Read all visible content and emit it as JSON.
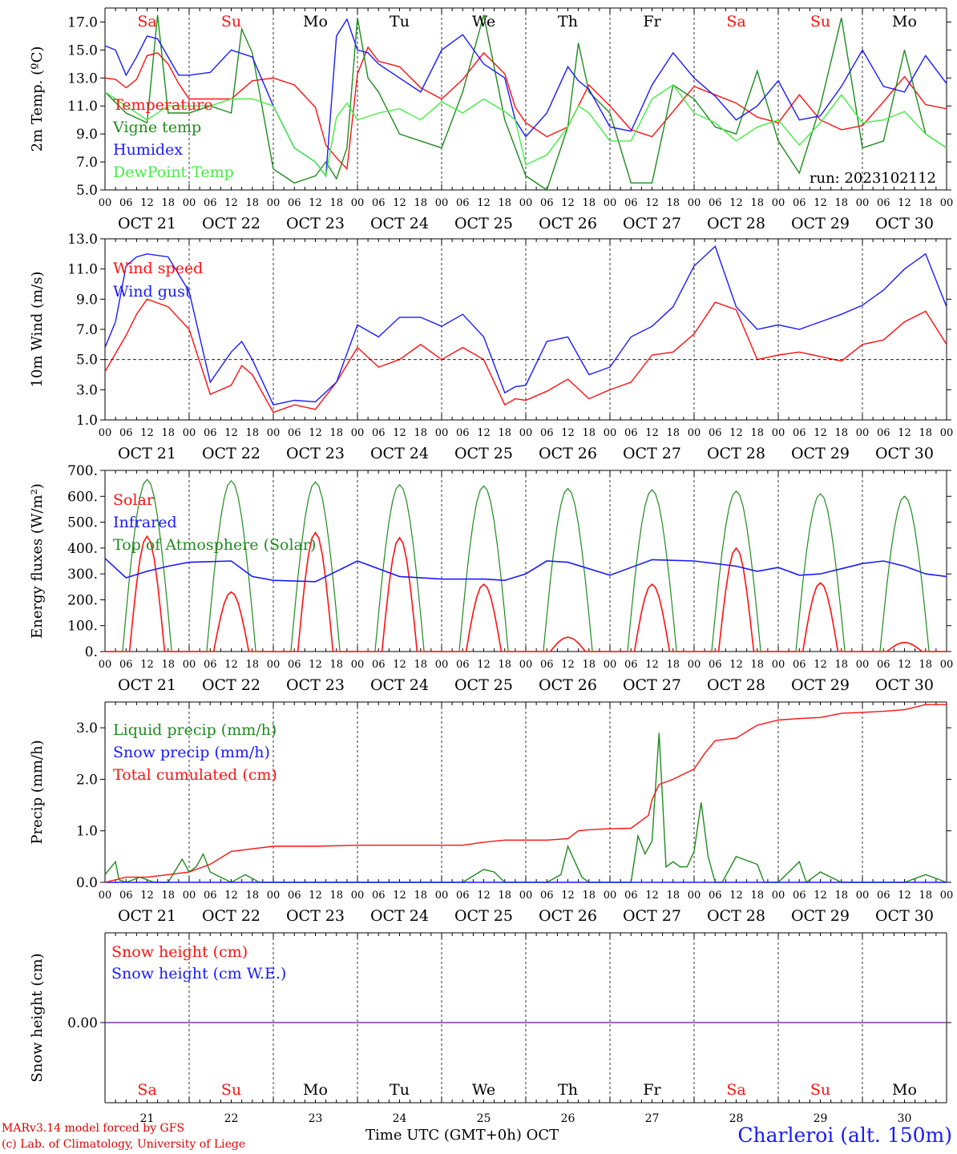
{
  "colors": {
    "red": "#ff1010",
    "green": "#1e8c1e",
    "blue": "#1a1aff",
    "lightgreen": "#44ee44",
    "purple": "#7a3aa0",
    "axis": "#000000"
  },
  "days": {
    "dates": [
      "21",
      "22",
      "23",
      "24",
      "25",
      "26",
      "27",
      "28",
      "29",
      "30"
    ],
    "date_labels": [
      "OCT 21",
      "OCT 22",
      "OCT 23",
      "OCT 24",
      "OCT 25",
      "OCT 26",
      "OCT 27",
      "OCT 28",
      "OCT 29",
      "OCT 30"
    ],
    "weekdays": [
      "Sa",
      "Su",
      "Mo",
      "Tu",
      "We",
      "Th",
      "Fr",
      "Sa",
      "Su",
      "Mo"
    ],
    "weekend": [
      true,
      true,
      false,
      false,
      false,
      false,
      false,
      true,
      true,
      false
    ],
    "hour_ticks": [
      "00",
      "06",
      "12",
      "18"
    ],
    "final_hour_label": "00"
  },
  "footer": {
    "model_line": "MARv3.14 model forced by GFS",
    "lab_line": "(c) Lab. of Climatology, University of Liege",
    "time_axis_title": "Time UTC (GMT+0h)",
    "month_label": "OCT",
    "station": "Charleroi (alt. 150m)"
  },
  "chart_data": [
    {
      "id": "temperature",
      "type": "line",
      "ylabel": "2m Temp. (ºC)",
      "ylim": [
        5.0,
        18.0
      ],
      "yticks": [
        5.0,
        7.0,
        9.0,
        11.0,
        13.0,
        15.0,
        17.0
      ],
      "ytick_labels": [
        "5.0",
        "7.0",
        "9.0",
        "11.0",
        "13.0",
        "15.0",
        "17.0"
      ],
      "annotation": "run: 2023102112",
      "x_unit": "hours since Oct 21 00 UTC",
      "series": [
        {
          "name": "Temperature",
          "color": "red",
          "x": [
            0,
            3,
            6,
            9,
            12,
            15,
            18,
            21,
            24,
            30,
            36,
            42,
            48,
            54,
            60,
            63,
            66,
            69,
            72,
            75,
            78,
            84,
            90,
            96,
            102,
            108,
            114,
            117,
            120,
            126,
            132,
            135,
            138,
            144,
            150,
            156,
            162,
            168,
            174,
            180,
            186,
            192,
            198,
            204,
            210,
            216,
            222,
            228,
            234,
            240
          ],
          "y": [
            13.0,
            12.9,
            12.3,
            12.9,
            14.6,
            14.8,
            14.0,
            12.6,
            11.5,
            11.5,
            11.5,
            12.8,
            13.0,
            12.5,
            10.9,
            8.2,
            7.3,
            6.5,
            13.3,
            15.2,
            14.2,
            13.8,
            12.3,
            11.5,
            12.9,
            14.8,
            13.3,
            10.9,
            9.8,
            8.8,
            9.5,
            11.0,
            12.5,
            11.0,
            9.3,
            8.8,
            10.6,
            12.4,
            11.8,
            11.2,
            10.2,
            9.8,
            11.8,
            10.0,
            9.3,
            9.6,
            11.3,
            13.1,
            11.1,
            10.8
          ]
        },
        {
          "name": "Vigne temp",
          "color": "green",
          "x": [
            0,
            6,
            12,
            15,
            18,
            24,
            30,
            36,
            39,
            42,
            48,
            54,
            60,
            63,
            66,
            69,
            72,
            75,
            78,
            84,
            90,
            96,
            102,
            108,
            114,
            120,
            126,
            132,
            135,
            138,
            144,
            150,
            156,
            162,
            168,
            174,
            180,
            186,
            192,
            198,
            204,
            210,
            216,
            222,
            228,
            234,
            240
          ],
          "y": [
            12.0,
            10.5,
            9.8,
            17.5,
            10.5,
            10.5,
            11.0,
            10.5,
            16.5,
            14.8,
            6.5,
            5.5,
            6.0,
            7.0,
            5.8,
            8.0,
            17.3,
            13.0,
            12.0,
            9.0,
            8.5,
            8.0,
            12.0,
            17.5,
            10.0,
            6.0,
            5.0,
            9.5,
            15.5,
            12.0,
            10.5,
            5.5,
            5.5,
            12.5,
            11.5,
            9.5,
            9.0,
            13.5,
            8.5,
            6.2,
            11.0,
            17.3,
            8.0,
            8.5,
            15.0,
            9.0,
            8.0
          ]
        },
        {
          "name": "Humidex",
          "color": "blue",
          "x": [
            0,
            3,
            6,
            9,
            12,
            15,
            18,
            21,
            24,
            30,
            36,
            42,
            48,
            54,
            60,
            63,
            66,
            69,
            72,
            75,
            78,
            84,
            90,
            96,
            102,
            108,
            114,
            117,
            120,
            126,
            132,
            135,
            138,
            144,
            150,
            156,
            162,
            168,
            174,
            180,
            186,
            192,
            198,
            204,
            210,
            216,
            222,
            228,
            234,
            240
          ],
          "y": [
            15.3,
            15.0,
            13.2,
            14.5,
            16.0,
            15.8,
            14.5,
            13.2,
            13.2,
            13.4,
            15.0,
            14.5,
            11.0,
            8.0,
            7.0,
            6.0,
            16.0,
            17.2,
            15.0,
            14.8,
            14.0,
            13.0,
            12.0,
            15.0,
            16.1,
            14.0,
            13.0,
            10.0,
            8.8,
            10.5,
            13.8,
            12.8,
            12.2,
            9.5,
            9.2,
            12.5,
            14.8,
            13.0,
            11.7,
            10.0,
            11.0,
            12.8,
            10.0,
            10.3,
            12.4,
            15.0,
            12.4,
            12.0,
            14.6,
            12.6
          ]
        },
        {
          "name": "DewPoint Temp",
          "color": "lightgreen",
          "x": [
            0,
            6,
            12,
            18,
            24,
            30,
            36,
            42,
            48,
            54,
            60,
            63,
            66,
            69,
            72,
            78,
            84,
            90,
            96,
            102,
            108,
            114,
            117,
            120,
            126,
            132,
            135,
            138,
            144,
            150,
            156,
            162,
            168,
            174,
            180,
            186,
            192,
            198,
            204,
            210,
            216,
            222,
            228,
            234,
            240
          ],
          "y": [
            12.0,
            11.0,
            10.0,
            11.0,
            11.0,
            11.0,
            11.5,
            11.5,
            11.0,
            8.0,
            7.0,
            6.0,
            10.2,
            11.2,
            10.0,
            10.5,
            10.8,
            10.0,
            11.3,
            10.5,
            11.5,
            10.6,
            10.0,
            6.8,
            7.5,
            9.5,
            11.0,
            10.5,
            8.5,
            8.5,
            11.5,
            12.5,
            10.5,
            9.8,
            8.5,
            9.5,
            10.0,
            8.2,
            9.8,
            11.8,
            9.8,
            10.0,
            10.6,
            9.0,
            8.0
          ]
        }
      ]
    },
    {
      "id": "wind",
      "type": "line",
      "ylabel": "10m Wind (m/s)",
      "ylim": [
        1.0,
        13.0
      ],
      "yticks": [
        1.0,
        3.0,
        5.0,
        7.0,
        9.0,
        11.0,
        13.0
      ],
      "ytick_labels": [
        "1.0",
        "3.0",
        "5.0",
        "7.0",
        "9.0",
        "11.0",
        "13.0"
      ],
      "reference_line": 5.0,
      "series": [
        {
          "name": "Wind speed",
          "color": "red",
          "x": [
            0,
            6,
            9,
            12,
            18,
            24,
            30,
            36,
            39,
            42,
            48,
            54,
            60,
            66,
            72,
            78,
            84,
            90,
            96,
            102,
            108,
            114,
            117,
            120,
            126,
            132,
            138,
            144,
            150,
            156,
            162,
            168,
            174,
            180,
            186,
            192,
            198,
            204,
            210,
            216,
            222,
            228,
            234,
            240
          ],
          "y": [
            4.2,
            6.6,
            8.0,
            9.0,
            8.5,
            7.0,
            2.7,
            3.3,
            4.6,
            4.0,
            1.5,
            2.0,
            1.7,
            3.5,
            5.8,
            4.5,
            5.0,
            6.0,
            5.0,
            5.8,
            5.0,
            2.0,
            2.4,
            2.3,
            2.9,
            3.7,
            2.4,
            3.0,
            3.5,
            5.3,
            5.5,
            6.7,
            8.8,
            8.3,
            5.0,
            5.3,
            5.5,
            5.2,
            4.9,
            6.0,
            6.3,
            7.5,
            8.2,
            6.0
          ]
        },
        {
          "name": "Wind gust",
          "color": "blue",
          "x": [
            0,
            3,
            6,
            9,
            12,
            18,
            24,
            30,
            36,
            39,
            42,
            48,
            54,
            60,
            66,
            72,
            78,
            84,
            90,
            96,
            102,
            108,
            114,
            117,
            120,
            126,
            132,
            138,
            144,
            150,
            156,
            162,
            168,
            174,
            180,
            186,
            192,
            198,
            204,
            210,
            216,
            222,
            228,
            234,
            240
          ],
          "y": [
            5.8,
            7.5,
            11.2,
            11.8,
            12.0,
            11.8,
            9.5,
            3.5,
            5.5,
            6.2,
            5.0,
            2.0,
            2.3,
            2.2,
            3.5,
            7.3,
            6.5,
            7.8,
            7.8,
            7.2,
            8.0,
            6.5,
            2.8,
            3.2,
            3.3,
            6.2,
            6.5,
            4.0,
            4.5,
            6.5,
            7.2,
            8.5,
            11.2,
            12.5,
            8.5,
            7.0,
            7.3,
            7.0,
            7.5,
            8.0,
            8.6,
            9.6,
            11.0,
            12.0,
            8.5
          ]
        }
      ]
    },
    {
      "id": "energy",
      "type": "line",
      "ylabel": "Energy fluxes (W/m²)",
      "ylim": [
        0,
        700
      ],
      "yticks": [
        0,
        100,
        200,
        300,
        400,
        500,
        600,
        700
      ],
      "ytick_labels": [
        "0.",
        "100.",
        "200.",
        "300.",
        "400.",
        "500.",
        "600.",
        "700."
      ],
      "series": [
        {
          "name": "Solar",
          "color": "red",
          "solar_peaks": [
            445,
            230,
            460,
            440,
            260,
            55,
            260,
            400,
            265,
            35
          ]
        },
        {
          "name": "Infrared",
          "color": "blue",
          "x": [
            0,
            6,
            12,
            18,
            24,
            36,
            42,
            48,
            60,
            72,
            84,
            96,
            108,
            114,
            120,
            126,
            132,
            144,
            156,
            168,
            180,
            186,
            192,
            198,
            204,
            210,
            216,
            222,
            228,
            234,
            240
          ],
          "y": [
            360,
            285,
            310,
            330,
            345,
            350,
            290,
            275,
            270,
            350,
            290,
            280,
            280,
            275,
            300,
            350,
            345,
            295,
            355,
            350,
            330,
            310,
            325,
            295,
            300,
            320,
            340,
            350,
            330,
            300,
            290
          ]
        },
        {
          "name": "Top of Atmosphere (Solar)",
          "color": "green",
          "toa_peaks": [
            665,
            660,
            655,
            645,
            640,
            630,
            625,
            620,
            610,
            600
          ]
        }
      ]
    },
    {
      "id": "precip",
      "type": "line",
      "ylabel": "Precip (mm/h)",
      "ylim": [
        0,
        3.5
      ],
      "yticks": [
        0.0,
        1.0,
        2.0,
        3.0
      ],
      "ytick_labels": [
        "0.0",
        "1.0",
        "2.0",
        "3.0"
      ],
      "series": [
        {
          "name": "Liquid precip (mm/h)",
          "color": "green",
          "x": [
            0,
            3,
            4,
            6,
            10,
            14,
            18,
            22,
            24,
            26,
            28,
            30,
            33,
            36,
            40,
            44,
            48,
            60,
            72,
            84,
            90,
            96,
            102,
            108,
            111,
            114,
            120,
            126,
            130,
            132,
            136,
            138,
            144,
            150,
            152,
            154,
            156,
            158,
            160,
            162,
            164,
            166,
            168,
            170,
            172,
            174,
            176,
            180,
            186,
            188,
            190,
            192,
            198,
            200,
            204,
            210,
            216,
            222,
            228,
            234,
            240
          ],
          "y": [
            0.15,
            0.4,
            0.05,
            0.0,
            0.1,
            0.0,
            0.0,
            0.45,
            0.2,
            0.3,
            0.55,
            0.2,
            0.1,
            0.0,
            0.15,
            0.0,
            0.0,
            0.0,
            0.0,
            0.0,
            0.0,
            0.0,
            0.0,
            0.25,
            0.2,
            0.0,
            0.0,
            0.0,
            0.15,
            0.7,
            0.1,
            0.0,
            0.0,
            0.0,
            0.9,
            0.55,
            0.8,
            2.9,
            0.3,
            0.4,
            0.3,
            0.3,
            0.6,
            1.55,
            0.5,
            0.0,
            0.0,
            0.5,
            0.35,
            0.0,
            0.0,
            0.0,
            0.4,
            0.0,
            0.2,
            0.0,
            0.0,
            0.0,
            0.0,
            0.15,
            0.0
          ]
        },
        {
          "name": "Snow precip (mm/h)",
          "color": "blue",
          "x": [
            0,
            240
          ],
          "y": [
            0.0,
            0.0
          ]
        },
        {
          "name": "Total cumulated (cm)",
          "color": "red",
          "x": [
            0,
            6,
            12,
            18,
            24,
            30,
            36,
            42,
            48,
            60,
            72,
            84,
            96,
            102,
            108,
            114,
            120,
            126,
            132,
            135,
            138,
            144,
            150,
            155,
            156,
            158,
            162,
            168,
            171,
            174,
            180,
            186,
            192,
            198,
            204,
            210,
            216,
            222,
            228,
            234,
            240
          ],
          "y": [
            0.0,
            0.1,
            0.1,
            0.15,
            0.2,
            0.35,
            0.6,
            0.65,
            0.7,
            0.7,
            0.72,
            0.72,
            0.72,
            0.72,
            0.78,
            0.82,
            0.82,
            0.82,
            0.85,
            1.0,
            1.02,
            1.04,
            1.05,
            1.3,
            1.6,
            1.9,
            2.0,
            2.2,
            2.5,
            2.75,
            2.8,
            3.05,
            3.15,
            3.18,
            3.2,
            3.28,
            3.3,
            3.32,
            3.35,
            3.45,
            3.45
          ]
        }
      ]
    },
    {
      "id": "snow",
      "type": "line",
      "ylabel": "Snow height (cm)",
      "yticks": [
        0.0
      ],
      "ytick_labels": [
        "0.00"
      ],
      "series": [
        {
          "name": "Snow height (cm)",
          "color": "red",
          "x": [
            0,
            240
          ],
          "y": [
            0.0,
            0.0
          ]
        },
        {
          "name": "Snow height (cm W.E.)",
          "color": "blue",
          "x": [
            0,
            240
          ],
          "y": [
            0.0,
            0.0
          ]
        }
      ]
    }
  ]
}
